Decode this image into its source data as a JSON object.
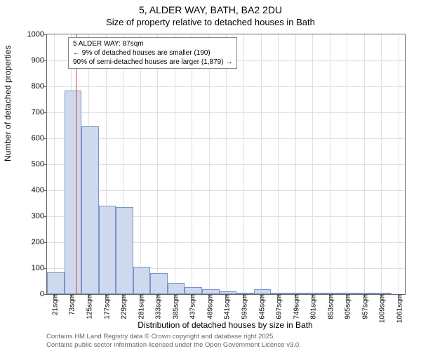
{
  "title": "5, ALDER WAY, BATH, BA2 2DU",
  "subtitle": "Size of property relative to detached houses in Bath",
  "ylabel": "Number of detached properties",
  "xlabel": "Distribution of detached houses by size in Bath",
  "chart": {
    "type": "histogram",
    "ylim": [
      0,
      1000
    ],
    "ytick_step": 100,
    "yticks": [
      0,
      100,
      200,
      300,
      400,
      500,
      600,
      700,
      800,
      900,
      1000
    ],
    "xticks": [
      21,
      73,
      125,
      177,
      229,
      281,
      333,
      385,
      437,
      489,
      541,
      593,
      645,
      697,
      749,
      801,
      853,
      905,
      957,
      1009,
      1061
    ],
    "xtick_suffix": "sqm",
    "xlim": [
      0,
      1080
    ],
    "bar_data": [
      {
        "x0": 0,
        "x1": 52,
        "v": 85
      },
      {
        "x0": 52,
        "x1": 104,
        "v": 785
      },
      {
        "x0": 104,
        "x1": 156,
        "v": 645
      },
      {
        "x0": 156,
        "x1": 208,
        "v": 340
      },
      {
        "x0": 208,
        "x1": 260,
        "v": 335
      },
      {
        "x0": 260,
        "x1": 312,
        "v": 105
      },
      {
        "x0": 312,
        "x1": 364,
        "v": 80
      },
      {
        "x0": 364,
        "x1": 416,
        "v": 42
      },
      {
        "x0": 416,
        "x1": 468,
        "v": 28
      },
      {
        "x0": 468,
        "x1": 520,
        "v": 18
      },
      {
        "x0": 520,
        "x1": 572,
        "v": 12
      },
      {
        "x0": 572,
        "x1": 624,
        "v": 6
      },
      {
        "x0": 624,
        "x1": 676,
        "v": 18
      },
      {
        "x0": 676,
        "x1": 728,
        "v": 3
      },
      {
        "x0": 728,
        "x1": 780,
        "v": 2
      },
      {
        "x0": 780,
        "x1": 832,
        "v": 2
      },
      {
        "x0": 832,
        "x1": 884,
        "v": 2
      },
      {
        "x0": 884,
        "x1": 936,
        "v": 1
      },
      {
        "x0": 936,
        "x1": 988,
        "v": 1
      },
      {
        "x0": 988,
        "x1": 1040,
        "v": 1
      }
    ],
    "bar_fill": "#cfd9ed",
    "bar_border": "#7a93c4",
    "grid_color": "#e0e0e0",
    "background_color": "#ffffff",
    "axis_color": "#666666",
    "marker_x": 87,
    "marker_color": "#ee3333"
  },
  "legend": {
    "line1": "5 ALDER WAY: 87sqm",
    "line2": "← 9% of detached houses are smaller (190)",
    "line3": "90% of semi-detached houses are larger (1,879) →"
  },
  "footer": {
    "line1": "Contains HM Land Registry data © Crown copyright and database right 2025.",
    "line2": "Contains public sector information licensed under the Open Government Licence v3.0."
  }
}
